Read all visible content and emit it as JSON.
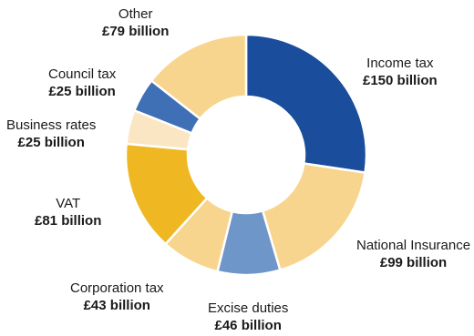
{
  "chart_data": {
    "type": "pie",
    "variant": "donut",
    "unit": "£ billion",
    "slices": [
      {
        "label": "Income tax",
        "value_text": "£150 billion",
        "value": 150,
        "color": "#1a4d9c"
      },
      {
        "label": "National Insurance",
        "value_text": "£99 billion",
        "value": 99,
        "color": "#f8d58e"
      },
      {
        "label": "Excise duties",
        "value_text": "£46 billion",
        "value": 46,
        "color": "#6f96c9"
      },
      {
        "label": "Corporation tax",
        "value_text": "£43 billion",
        "value": 43,
        "color": "#f8d58e"
      },
      {
        "label": "VAT",
        "value_text": "£81 billion",
        "value": 81,
        "color": "#efb722"
      },
      {
        "label": "Business rates",
        "value_text": "£25 billion",
        "value": 25,
        "color": "#fbe6c4"
      },
      {
        "label": "Council tax",
        "value_text": "£25 billion",
        "value": 25,
        "color": "#3f6fb5"
      },
      {
        "label": "Other",
        "value_text": "£79 billion",
        "value": 79,
        "color": "#f8d58e"
      }
    ]
  }
}
